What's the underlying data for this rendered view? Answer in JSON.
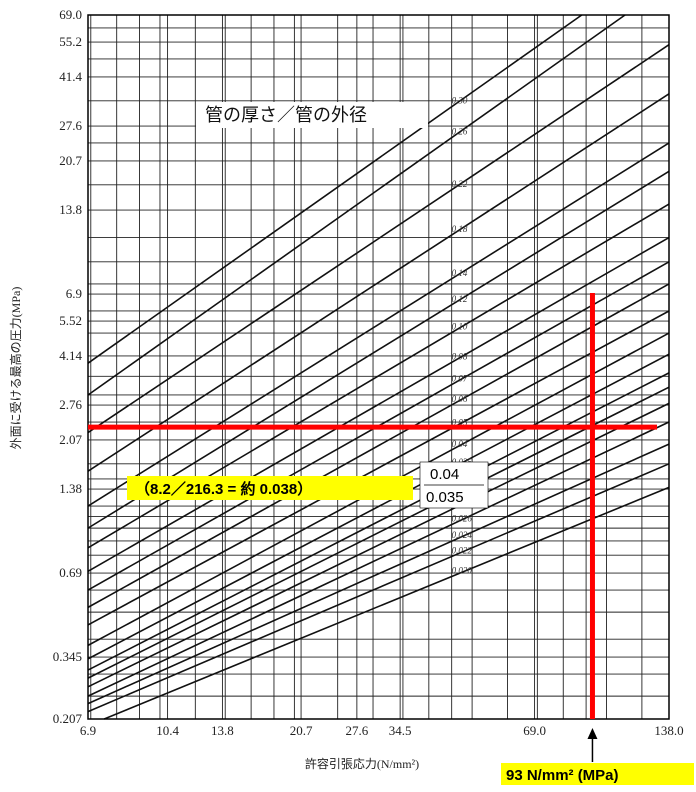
{
  "chart_data": {
    "type": "line",
    "title": "管の厚さ／管の外径",
    "xlabel": "許容引張応力(N/mm²)",
    "ylabel": "外面に受ける最高の圧力(MPa)",
    "x_scale": "log",
    "y_scale": "log",
    "xlim": [
      6.9,
      138.0
    ],
    "ylim": [
      0.207,
      69.0
    ],
    "x_ticks": [
      "6.9",
      "10.4",
      "13.8",
      "20.7",
      "27.6",
      "34.5",
      "69.0",
      "138.0"
    ],
    "x_tick_values": [
      6.9,
      10.4,
      13.8,
      20.7,
      27.6,
      34.5,
      69.0,
      138.0
    ],
    "y_ticks": [
      "69.0",
      "55.2",
      "41.4",
      "27.6",
      "20.7",
      "13.8",
      "6.9",
      "5.52",
      "4.14",
      "2.76",
      "2.07",
      "1.38",
      "0.69",
      "0.345",
      "0.207"
    ],
    "y_tick_values": [
      69.0,
      55.2,
      41.4,
      27.6,
      20.7,
      13.8,
      6.9,
      5.52,
      4.14,
      2.76,
      2.07,
      1.38,
      0.69,
      0.345,
      0.207
    ],
    "grid": true,
    "series": [
      {
        "name": "0.30",
        "values": [
          [
            6.9,
            3.9
          ],
          [
            88,
            69.0
          ]
        ]
      },
      {
        "name": "0.26",
        "values": [
          [
            6.9,
            3.0
          ],
          [
            110,
            69.0
          ]
        ]
      },
      {
        "name": "0.22",
        "values": [
          [
            6.9,
            2.2
          ],
          [
            138.0,
            54
          ]
        ]
      },
      {
        "name": "0.18",
        "values": [
          [
            6.9,
            1.6
          ],
          [
            138.0,
            36
          ]
        ]
      },
      {
        "name": "0.14",
        "values": [
          [
            6.9,
            1.2
          ],
          [
            138.0,
            24
          ]
        ]
      },
      {
        "name": "0.12",
        "values": [
          [
            6.9,
            1.0
          ],
          [
            138.0,
            19
          ]
        ]
      },
      {
        "name": "0.10",
        "values": [
          [
            6.9,
            0.85
          ],
          [
            138.0,
            14.5
          ]
        ]
      },
      {
        "name": "0.08",
        "values": [
          [
            6.9,
            0.7
          ],
          [
            138.0,
            11.0
          ]
        ]
      },
      {
        "name": "0.07",
        "values": [
          [
            6.9,
            0.6
          ],
          [
            138.0,
            9.0
          ]
        ]
      },
      {
        "name": "0.06",
        "values": [
          [
            6.9,
            0.52
          ],
          [
            138.0,
            7.5
          ]
        ]
      },
      {
        "name": "0.05",
        "values": [
          [
            6.9,
            0.45
          ],
          [
            138.0,
            6.0
          ]
        ]
      },
      {
        "name": "0.04",
        "values": [
          [
            6.9,
            0.38
          ],
          [
            138.0,
            5.0
          ]
        ]
      },
      {
        "name": "0.035",
        "values": [
          [
            6.9,
            0.34
          ],
          [
            138.0,
            4.2
          ]
        ]
      },
      {
        "name": "0.032",
        "values": [
          [
            6.9,
            0.31
          ],
          [
            138.0,
            3.6
          ]
        ]
      },
      {
        "name": "0.030",
        "values": [
          [
            6.9,
            0.29
          ],
          [
            138.0,
            3.2
          ]
        ]
      },
      {
        "name": "0.028",
        "values": [
          [
            6.9,
            0.27
          ],
          [
            138.0,
            2.8
          ]
        ]
      },
      {
        "name": "0.026",
        "values": [
          [
            6.9,
            0.25
          ],
          [
            138.0,
            2.4
          ]
        ]
      },
      {
        "name": "0.024",
        "values": [
          [
            6.9,
            0.235
          ],
          [
            138.0,
            2.0
          ]
        ]
      },
      {
        "name": "0.022",
        "values": [
          [
            6.9,
            0.22
          ],
          [
            138.0,
            1.7
          ]
        ]
      },
      {
        "name": "0.020",
        "values": [
          [
            7.5,
            0.207
          ],
          [
            138.0,
            1.4
          ]
        ]
      }
    ],
    "annotations": {
      "highlight_x": 93,
      "highlight_y": 2.3,
      "ratio_text": "（8.2／216.3 = 約 0.038）",
      "label_004": "0.04",
      "label_0035": "0.035",
      "x_marker_text": "93 N/mm² (MPa)",
      "highlight_color": "#ff0000",
      "marker_bg_color": "#ffff00"
    }
  }
}
